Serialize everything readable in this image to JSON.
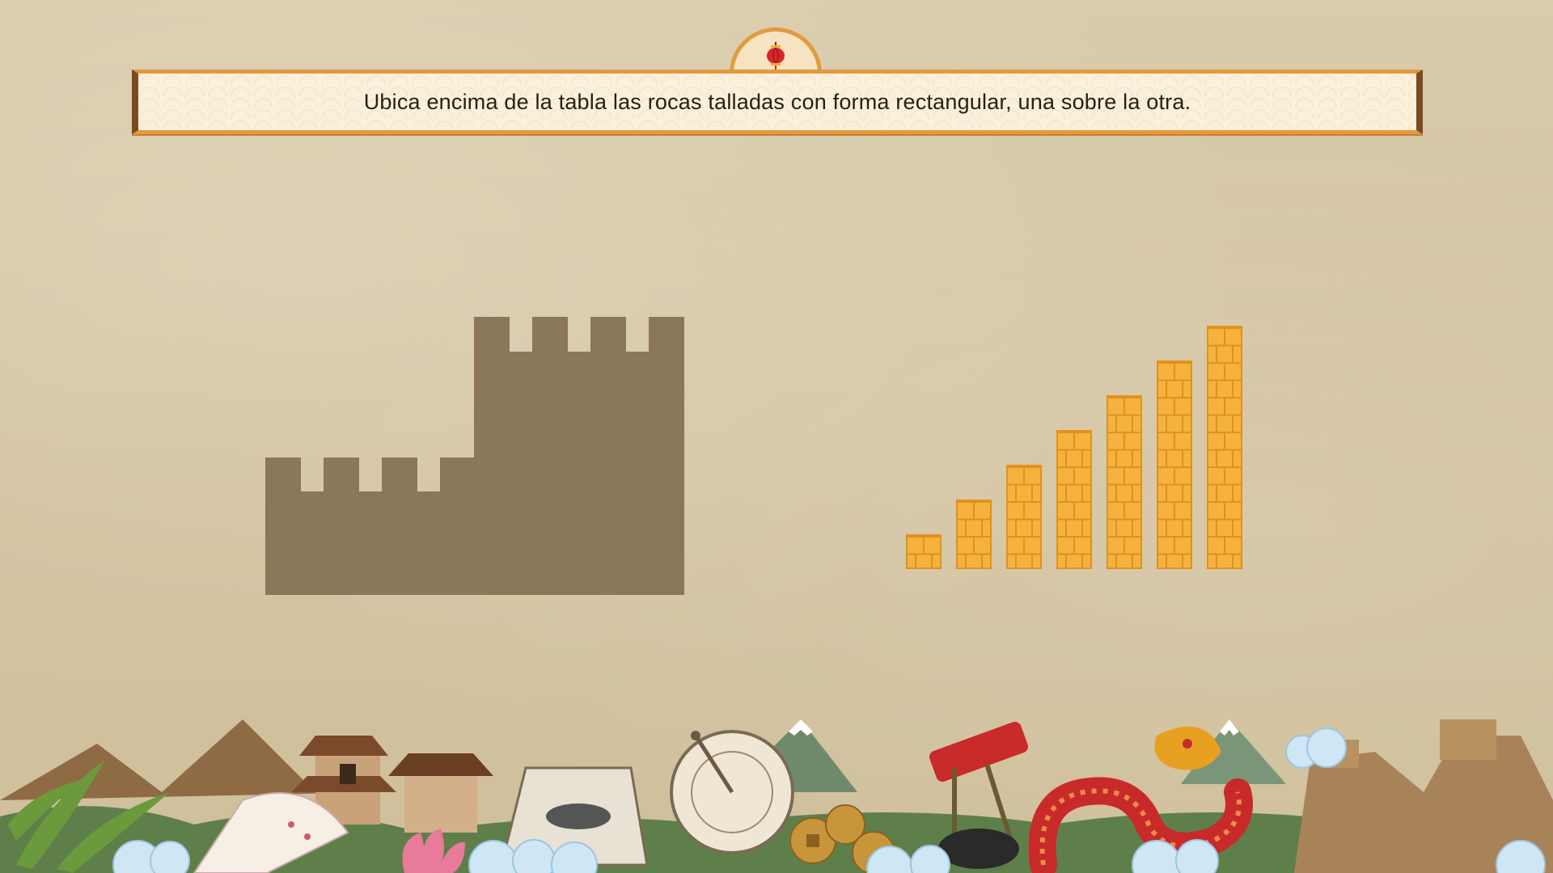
{
  "instruction": {
    "text": "Ubica encima de la tabla las rocas talladas con forma rectangular, una sobre la otra."
  },
  "icons": {
    "banner_ornament": "lantern-icon"
  },
  "target": {
    "shape": "fortress-wall-silhouette",
    "color": "#8a7859"
  },
  "brick_columns": {
    "color": "#f6b23f",
    "mortar_color": "#e0921c",
    "heights_in_blocks": [
      1,
      2,
      3,
      4,
      5,
      6,
      7
    ]
  },
  "footer": {
    "theme": "chinese-culture-collage"
  }
}
